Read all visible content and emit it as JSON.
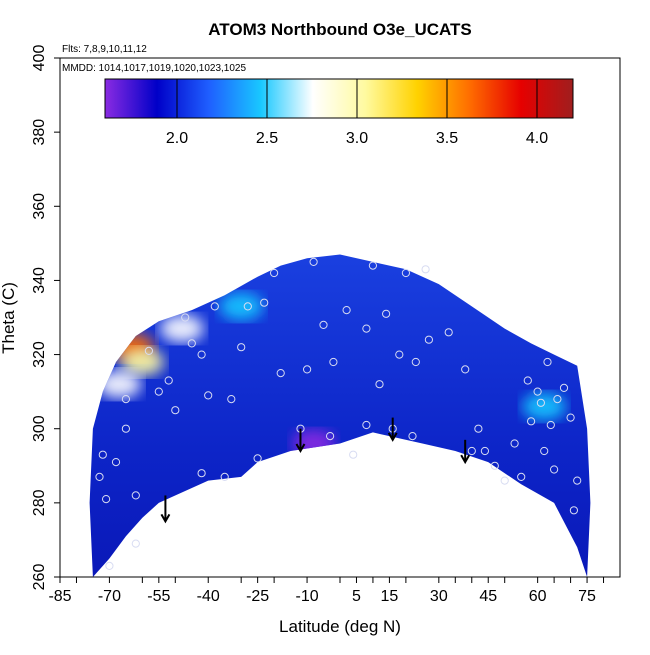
{
  "colors": {
    "background": "#ffffff",
    "field_base": "#0a1fbe",
    "point_marker": "#d8dcf2",
    "arrow": "#000000",
    "colorbar_stops": [
      "#8a2be2",
      "#0000c8",
      "#1f5fff",
      "#19c8ff",
      "#ffffff",
      "#fffaa0",
      "#ffd200",
      "#ff6e00",
      "#e60000",
      "#a01e1e"
    ]
  },
  "chart_data": {
    "type": "heatmap",
    "title": "ATOM3 Northbound O3e_UCATS",
    "subtitle_flights": "Flts: 7,8,9,10,11,12",
    "subtitle_dates": "MMDD: 1014,1017,1019,1020,1023,1025",
    "xlabel": "Latitude (deg N)",
    "ylabel": "Theta (C)",
    "xlim": [
      -85,
      85
    ],
    "ylim": [
      260,
      400
    ],
    "x_ticks": [
      -85,
      -70,
      -55,
      -40,
      -25,
      -10,
      5,
      15,
      30,
      45,
      60,
      75
    ],
    "x_tick_labels": [
      "-85",
      "-70",
      "-55",
      "-40",
      "-25",
      "-10",
      "5",
      "15",
      "30",
      "45",
      "60",
      "75"
    ],
    "y_ticks": [
      260,
      280,
      300,
      320,
      340,
      360,
      380,
      400
    ],
    "y_tick_labels": [
      "260",
      "280",
      "300",
      "320",
      "340",
      "360",
      "380",
      "400"
    ],
    "colorbar": {
      "range": [
        1.6,
        4.2
      ],
      "ticks": [
        2.0,
        2.5,
        3.0,
        3.5,
        4.0
      ],
      "tick_labels": [
        "2.0",
        "2.5",
        "3.0",
        "3.5",
        "4.0"
      ]
    },
    "domain_boundary": {
      "lower": [
        [
          -75,
          260
        ],
        [
          -70,
          265
        ],
        [
          -65,
          271
        ],
        [
          -60,
          276
        ],
        [
          -55,
          280
        ],
        [
          -40,
          286
        ],
        [
          -30,
          287
        ],
        [
          -25,
          291
        ],
        [
          -15,
          294
        ],
        [
          0,
          296
        ],
        [
          10,
          299
        ],
        [
          15,
          298
        ],
        [
          25,
          296
        ],
        [
          35,
          294
        ],
        [
          45,
          291
        ],
        [
          55,
          285
        ],
        [
          65,
          280
        ],
        [
          72,
          268
        ],
        [
          75,
          260
        ]
      ],
      "upper": [
        [
          -75,
          260
        ],
        [
          -76,
          280
        ],
        [
          -75,
          300
        ],
        [
          -72,
          310
        ],
        [
          -68,
          318
        ],
        [
          -62,
          325
        ],
        [
          -55,
          329
        ],
        [
          -45,
          332
        ],
        [
          -35,
          336
        ],
        [
          -25,
          341
        ],
        [
          -18,
          344
        ],
        [
          -10,
          346
        ],
        [
          0,
          347
        ],
        [
          10,
          345
        ],
        [
          20,
          343
        ],
        [
          30,
          339
        ],
        [
          40,
          333
        ],
        [
          50,
          327
        ],
        [
          58,
          323
        ],
        [
          65,
          320
        ],
        [
          72,
          317
        ],
        [
          75,
          300
        ],
        [
          76,
          280
        ],
        [
          75,
          260
        ]
      ]
    },
    "high_values": [
      {
        "lat": -63,
        "theta": 322,
        "value": 3.5
      },
      {
        "lat": -60,
        "theta": 318,
        "value": 3.0
      },
      {
        "lat": -67,
        "theta": 312,
        "value": 2.7
      },
      {
        "lat": -48,
        "theta": 327,
        "value": 2.8
      },
      {
        "lat": -30,
        "theta": 333,
        "value": 2.4
      },
      {
        "lat": -8,
        "theta": 296,
        "value": 1.7
      },
      {
        "lat": 62,
        "theta": 306,
        "value": 2.4
      }
    ],
    "points": [
      [
        -73,
        287
      ],
      [
        -72,
        293
      ],
      [
        -71,
        281
      ],
      [
        -70,
        263
      ],
      [
        -68,
        291
      ],
      [
        -65,
        308
      ],
      [
        -65,
        300
      ],
      [
        -62,
        282
      ],
      [
        -62,
        269
      ],
      [
        -58,
        321
      ],
      [
        -55,
        310
      ],
      [
        -52,
        313
      ],
      [
        -50,
        305
      ],
      [
        -47,
        330
      ],
      [
        -45,
        323
      ],
      [
        -42,
        320
      ],
      [
        -42,
        288
      ],
      [
        -40,
        309
      ],
      [
        -38,
        333
      ],
      [
        -35,
        287
      ],
      [
        -33,
        308
      ],
      [
        -30,
        322
      ],
      [
        -28,
        333
      ],
      [
        -25,
        292
      ],
      [
        -23,
        334
      ],
      [
        -20,
        342
      ],
      [
        -18,
        315
      ],
      [
        -12,
        300
      ],
      [
        -10,
        316
      ],
      [
        -8,
        345
      ],
      [
        -5,
        328
      ],
      [
        -3,
        298
      ],
      [
        -2,
        318
      ],
      [
        2,
        332
      ],
      [
        4,
        293
      ],
      [
        8,
        327
      ],
      [
        8,
        301
      ],
      [
        10,
        344
      ],
      [
        12,
        312
      ],
      [
        14,
        331
      ],
      [
        16,
        300
      ],
      [
        18,
        320
      ],
      [
        20,
        342
      ],
      [
        22,
        298
      ],
      [
        23,
        318
      ],
      [
        26,
        343
      ],
      [
        27,
        324
      ],
      [
        33,
        326
      ],
      [
        38,
        316
      ],
      [
        40,
        294
      ],
      [
        42,
        300
      ],
      [
        44,
        294
      ],
      [
        47,
        290
      ],
      [
        50,
        286
      ],
      [
        53,
        296
      ],
      [
        55,
        287
      ],
      [
        57,
        313
      ],
      [
        58,
        302
      ],
      [
        60,
        310
      ],
      [
        61,
        307
      ],
      [
        62,
        294
      ],
      [
        63,
        318
      ],
      [
        64,
        301
      ],
      [
        65,
        289
      ],
      [
        66,
        308
      ],
      [
        68,
        311
      ],
      [
        70,
        303
      ],
      [
        71,
        278
      ],
      [
        72,
        286
      ]
    ],
    "arrows": [
      {
        "lat": -53,
        "from": 282,
        "to": 275
      },
      {
        "lat": -12,
        "from": 300,
        "to": 294
      },
      {
        "lat": 16,
        "from": 303,
        "to": 297
      },
      {
        "lat": 38,
        "from": 297,
        "to": 291
      }
    ]
  }
}
